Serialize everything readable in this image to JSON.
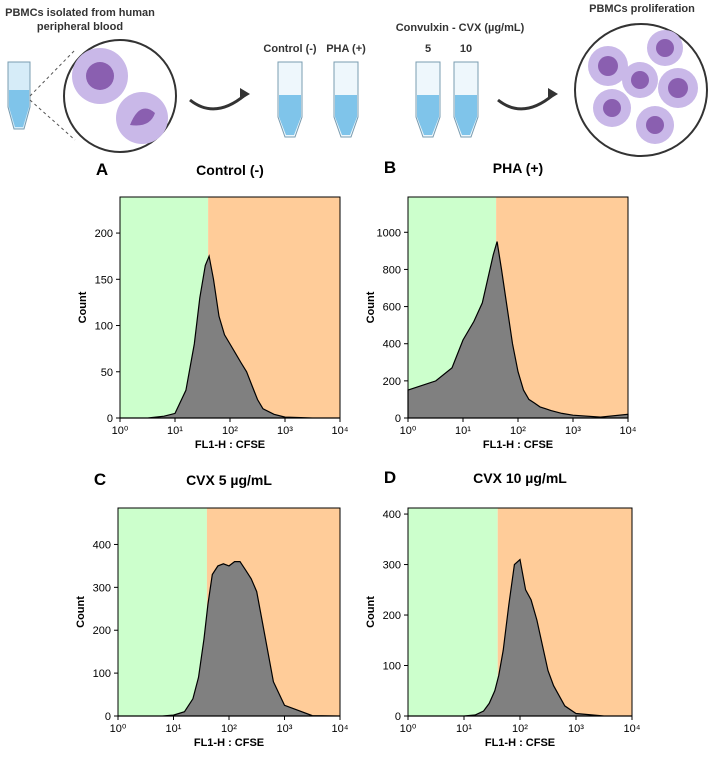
{
  "schematic": {
    "source_label": [
      "PBMCs isolated from human",
      "peripheral blood"
    ],
    "treatment_header": "Convulxin - CVX (µg/mL)",
    "tubes": [
      "Control (-)",
      "PHA (+)",
      "5",
      "10"
    ],
    "result_label": "PBMCs proliferation"
  },
  "chart_data": [
    {
      "type": "area",
      "panel": "A",
      "title": "Control (-)",
      "xlabel": "FL1-H : CFSE",
      "ylabel": "Count",
      "log_x": true,
      "color": "#808080",
      "regions": [
        {
          "from": 1,
          "to": 40,
          "color": "#ccffcc"
        },
        {
          "from": 40,
          "to": 10000,
          "color": "#ffcc99"
        }
      ],
      "xlim": [
        1,
        10000
      ],
      "xticks": [
        {
          "value": 1,
          "label": "10⁰"
        },
        {
          "value": 10,
          "label": "10¹"
        },
        {
          "value": 100,
          "label": "10²"
        },
        {
          "value": 1000,
          "label": "10³"
        },
        {
          "value": 10000,
          "label": "10⁴"
        }
      ],
      "ylim": [
        0,
        239
      ],
      "yticks": [
        0,
        50,
        100,
        150,
        200
      ],
      "x": [
        1,
        3.2,
        6.3,
        10,
        15.8,
        22.4,
        28.2,
        35.5,
        41.7,
        50.1,
        63.1,
        79.4,
        100,
        126,
        158,
        200,
        251,
        316,
        398,
        631,
        1000,
        3162,
        10000
      ],
      "values": [
        0,
        0,
        2,
        5,
        30,
        80,
        130,
        165,
        175,
        150,
        110,
        90,
        80,
        70,
        60,
        50,
        35,
        20,
        10,
        4,
        1,
        0,
        0
      ]
    },
    {
      "type": "area",
      "panel": "B",
      "title": "PHA (+)",
      "xlabel": "FL1-H : CFSE",
      "ylabel": "Count",
      "log_x": true,
      "color": "#808080",
      "regions": [
        {
          "from": 1,
          "to": 40,
          "color": "#ccffcc"
        },
        {
          "from": 40,
          "to": 10000,
          "color": "#ffcc99"
        }
      ],
      "xlim": [
        1,
        10000
      ],
      "xticks": [
        {
          "value": 1,
          "label": "10⁰"
        },
        {
          "value": 10,
          "label": "10¹"
        },
        {
          "value": 100,
          "label": "10²"
        },
        {
          "value": 1000,
          "label": "10³"
        },
        {
          "value": 10000,
          "label": "10⁴"
        }
      ],
      "ylim": [
        0,
        1190
      ],
      "yticks": [
        0,
        200,
        400,
        600,
        800,
        1000
      ],
      "x": [
        1,
        3.2,
        6.3,
        10,
        15.8,
        22.4,
        28.2,
        35.5,
        41.7,
        50.1,
        63.1,
        79.4,
        100,
        126,
        158,
        200,
        251,
        316,
        398,
        631,
        1000,
        3162,
        10000
      ],
      "values": [
        150,
        200,
        270,
        420,
        520,
        620,
        750,
        880,
        950,
        800,
        600,
        400,
        250,
        150,
        100,
        80,
        60,
        50,
        40,
        25,
        15,
        5,
        20
      ]
    },
    {
      "type": "area",
      "panel": "C",
      "title": "CVX 5 µg/mL",
      "xlabel": "FL1-H : CFSE",
      "ylabel": "Count",
      "log_x": true,
      "color": "#808080",
      "regions": [
        {
          "from": 1,
          "to": 40,
          "color": "#ccffcc"
        },
        {
          "from": 40,
          "to": 10000,
          "color": "#ffcc99"
        }
      ],
      "xlim": [
        1,
        10000
      ],
      "xticks": [
        {
          "value": 1,
          "label": "10⁰"
        },
        {
          "value": 10,
          "label": "10¹"
        },
        {
          "value": 100,
          "label": "10²"
        },
        {
          "value": 1000,
          "label": "10³"
        },
        {
          "value": 10000,
          "label": "10⁴"
        }
      ],
      "ylim": [
        0,
        485
      ],
      "yticks": [
        0,
        100,
        200,
        300,
        400
      ],
      "x": [
        1,
        3.2,
        6.3,
        10,
        15.8,
        22.4,
        28.2,
        35.5,
        41.7,
        50.1,
        63.1,
        79.4,
        100,
        126,
        158,
        200,
        251,
        316,
        398,
        631,
        1000,
        3162,
        10000
      ],
      "values": [
        0,
        0,
        0,
        2,
        10,
        40,
        90,
        180,
        260,
        330,
        350,
        355,
        350,
        360,
        360,
        340,
        320,
        290,
        220,
        80,
        25,
        1,
        0
      ]
    },
    {
      "type": "area",
      "panel": "D",
      "title": "CVX 10 µg/mL",
      "xlabel": "FL1-H : CFSE",
      "ylabel": "Count",
      "log_x": true,
      "color": "#808080",
      "regions": [
        {
          "from": 1,
          "to": 40,
          "color": "#ccffcc"
        },
        {
          "from": 40,
          "to": 10000,
          "color": "#ffcc99"
        }
      ],
      "xlim": [
        1,
        10000
      ],
      "xticks": [
        {
          "value": 1,
          "label": "10⁰"
        },
        {
          "value": 10,
          "label": "10¹"
        },
        {
          "value": 100,
          "label": "10²"
        },
        {
          "value": 1000,
          "label": "10³"
        },
        {
          "value": 10000,
          "label": "10⁴"
        }
      ],
      "ylim": [
        0,
        412
      ],
      "yticks": [
        0,
        100,
        200,
        300,
        400
      ],
      "x": [
        1,
        3.2,
        6.3,
        10,
        15.8,
        22.4,
        28.2,
        35.5,
        41.7,
        50.1,
        63.1,
        79.4,
        100,
        126,
        158,
        200,
        251,
        316,
        398,
        631,
        1000,
        3162,
        10000
      ],
      "values": [
        0,
        0,
        0,
        0,
        2,
        10,
        25,
        50,
        80,
        130,
        220,
        300,
        310,
        250,
        230,
        190,
        140,
        90,
        60,
        20,
        5,
        0,
        0
      ]
    }
  ]
}
